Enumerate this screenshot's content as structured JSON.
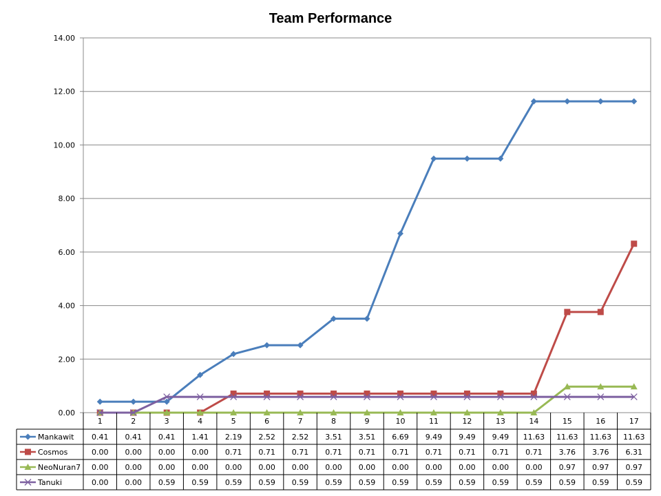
{
  "chart_data": {
    "type": "line",
    "title": "Team Performance",
    "categories": [
      "1",
      "2",
      "3",
      "4",
      "5",
      "6",
      "7",
      "8",
      "9",
      "10",
      "11",
      "12",
      "13",
      "14",
      "15",
      "16",
      "17"
    ],
    "ylim": [
      0,
      14
    ],
    "y_ticks": [
      "0.00",
      "2.00",
      "4.00",
      "6.00",
      "8.00",
      "10.00",
      "12.00",
      "14.00"
    ],
    "grid": true,
    "legend": "data-table",
    "series": [
      {
        "name": "Mankawit",
        "color": "#4a7ebb",
        "marker": "diamond",
        "values": [
          0.41,
          0.41,
          0.41,
          1.41,
          2.19,
          2.52,
          2.52,
          3.51,
          3.51,
          6.69,
          9.49,
          9.49,
          9.49,
          11.63,
          11.63,
          11.63,
          11.63
        ],
        "labels": [
          "0.41",
          "0.41",
          "0.41",
          "1.41",
          "2.19",
          "2.52",
          "2.52",
          "3.51",
          "3.51",
          "6.69",
          "9.49",
          "9.49",
          "9.49",
          "11.63",
          "11.63",
          "11.63",
          "11.63"
        ]
      },
      {
        "name": "Cosmos",
        "color": "#be4b48",
        "marker": "square",
        "values": [
          0,
          0,
          0,
          0,
          0.71,
          0.71,
          0.71,
          0.71,
          0.71,
          0.71,
          0.71,
          0.71,
          0.71,
          0.71,
          3.76,
          3.76,
          6.31
        ],
        "labels": [
          "0.00",
          "0.00",
          "0.00",
          "0.00",
          "0.71",
          "0.71",
          "0.71",
          "0.71",
          "0.71",
          "0.71",
          "0.71",
          "0.71",
          "0.71",
          "0.71",
          "3.76",
          "3.76",
          "6.31"
        ]
      },
      {
        "name": "NeoNuran7",
        "color": "#98b954",
        "marker": "triangle",
        "values": [
          0,
          0,
          0,
          0,
          0,
          0,
          0,
          0,
          0,
          0,
          0,
          0,
          0,
          0,
          0.97,
          0.97,
          0.97
        ],
        "labels": [
          "0.00",
          "0.00",
          "0.00",
          "0.00",
          "0.00",
          "0.00",
          "0.00",
          "0.00",
          "0.00",
          "0.00",
          "0.00",
          "0.00",
          "0.00",
          "0.00",
          "0.97",
          "0.97",
          "0.97"
        ]
      },
      {
        "name": "Tanuki",
        "color": "#7d60a0",
        "marker": "x",
        "values": [
          0,
          0,
          0.59,
          0.59,
          0.59,
          0.59,
          0.59,
          0.59,
          0.59,
          0.59,
          0.59,
          0.59,
          0.59,
          0.59,
          0.59,
          0.59,
          0.59
        ],
        "labels": [
          "0.00",
          "0.00",
          "0.59",
          "0.59",
          "0.59",
          "0.59",
          "0.59",
          "0.59",
          "0.59",
          "0.59",
          "0.59",
          "0.59",
          "0.59",
          "0.59",
          "0.59",
          "0.59",
          "0.59"
        ]
      }
    ]
  }
}
